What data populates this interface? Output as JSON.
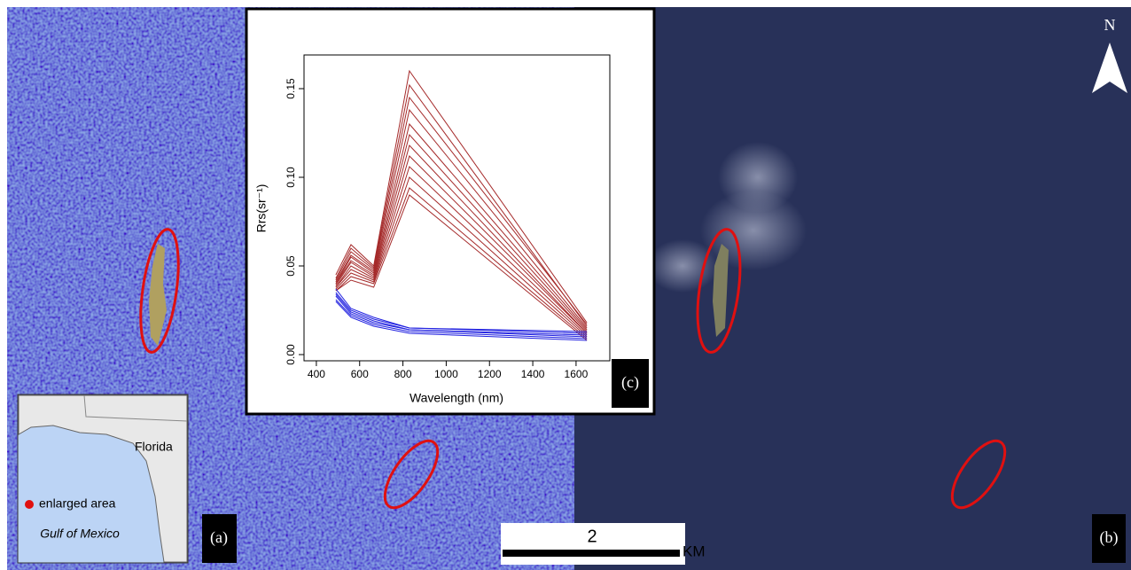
{
  "labels": {
    "panel_a": "(a)",
    "panel_b": "(b)",
    "panel_c": "(c)",
    "north": "N",
    "state": "Florida",
    "legend_dot": "enlarged area",
    "sea": "Gulf of Mexico",
    "scale_value": "2",
    "scale_unit": "KM"
  },
  "chart_data": {
    "type": "line",
    "x_label": "Wavelength (nm)",
    "y_label": "Rrs(sr⁻¹)",
    "x": [
      490,
      560,
      665,
      830,
      1650
    ],
    "series": [
      {
        "color": "#a52a2a",
        "values": [
          0.045,
          0.062,
          0.05,
          0.16,
          0.018
        ]
      },
      {
        "color": "#a52a2a",
        "values": [
          0.043,
          0.06,
          0.049,
          0.152,
          0.016
        ]
      },
      {
        "color": "#a52a2a",
        "values": [
          0.042,
          0.058,
          0.048,
          0.145,
          0.017
        ]
      },
      {
        "color": "#a52a2a",
        "values": [
          0.041,
          0.056,
          0.047,
          0.138,
          0.015
        ]
      },
      {
        "color": "#a52a2a",
        "values": [
          0.04,
          0.055,
          0.046,
          0.13,
          0.014
        ]
      },
      {
        "color": "#a52a2a",
        "values": [
          0.04,
          0.053,
          0.045,
          0.124,
          0.013
        ]
      },
      {
        "color": "#a52a2a",
        "values": [
          0.039,
          0.052,
          0.044,
          0.118,
          0.012
        ]
      },
      {
        "color": "#a52a2a",
        "values": [
          0.038,
          0.05,
          0.043,
          0.112,
          0.012
        ]
      },
      {
        "color": "#a52a2a",
        "values": [
          0.038,
          0.048,
          0.042,
          0.106,
          0.011
        ]
      },
      {
        "color": "#a52a2a",
        "values": [
          0.037,
          0.046,
          0.041,
          0.1,
          0.01
        ]
      },
      {
        "color": "#a52a2a",
        "values": [
          0.036,
          0.044,
          0.04,
          0.094,
          0.009
        ]
      },
      {
        "color": "#a52a2a",
        "values": [
          0.036,
          0.042,
          0.038,
          0.09,
          0.008
        ]
      },
      {
        "color": "#2020e0",
        "values": [
          0.037,
          0.026,
          0.021,
          0.015,
          0.013
        ]
      },
      {
        "color": "#2020e0",
        "values": [
          0.035,
          0.025,
          0.02,
          0.015,
          0.012
        ]
      },
      {
        "color": "#2020e0",
        "values": [
          0.034,
          0.024,
          0.019,
          0.014,
          0.011
        ]
      },
      {
        "color": "#2020e0",
        "values": [
          0.033,
          0.023,
          0.018,
          0.014,
          0.01
        ]
      },
      {
        "color": "#2020e0",
        "values": [
          0.031,
          0.022,
          0.017,
          0.013,
          0.009
        ]
      },
      {
        "color": "#2020e0",
        "values": [
          0.03,
          0.021,
          0.016,
          0.012,
          0.008
        ]
      }
    ],
    "xlim": [
      343,
      1756
    ],
    "xticks": [
      400,
      600,
      800,
      1000,
      1200,
      1400,
      1600
    ],
    "ylim": [
      -0.0035,
      0.169
    ],
    "yticks": [
      {
        "value": 0,
        "label": "0.00"
      },
      {
        "value": 0.05,
        "label": "0.05"
      },
      {
        "value": 0.1,
        "label": "0.10"
      },
      {
        "value": 0.15,
        "label": "0.15"
      }
    ]
  }
}
